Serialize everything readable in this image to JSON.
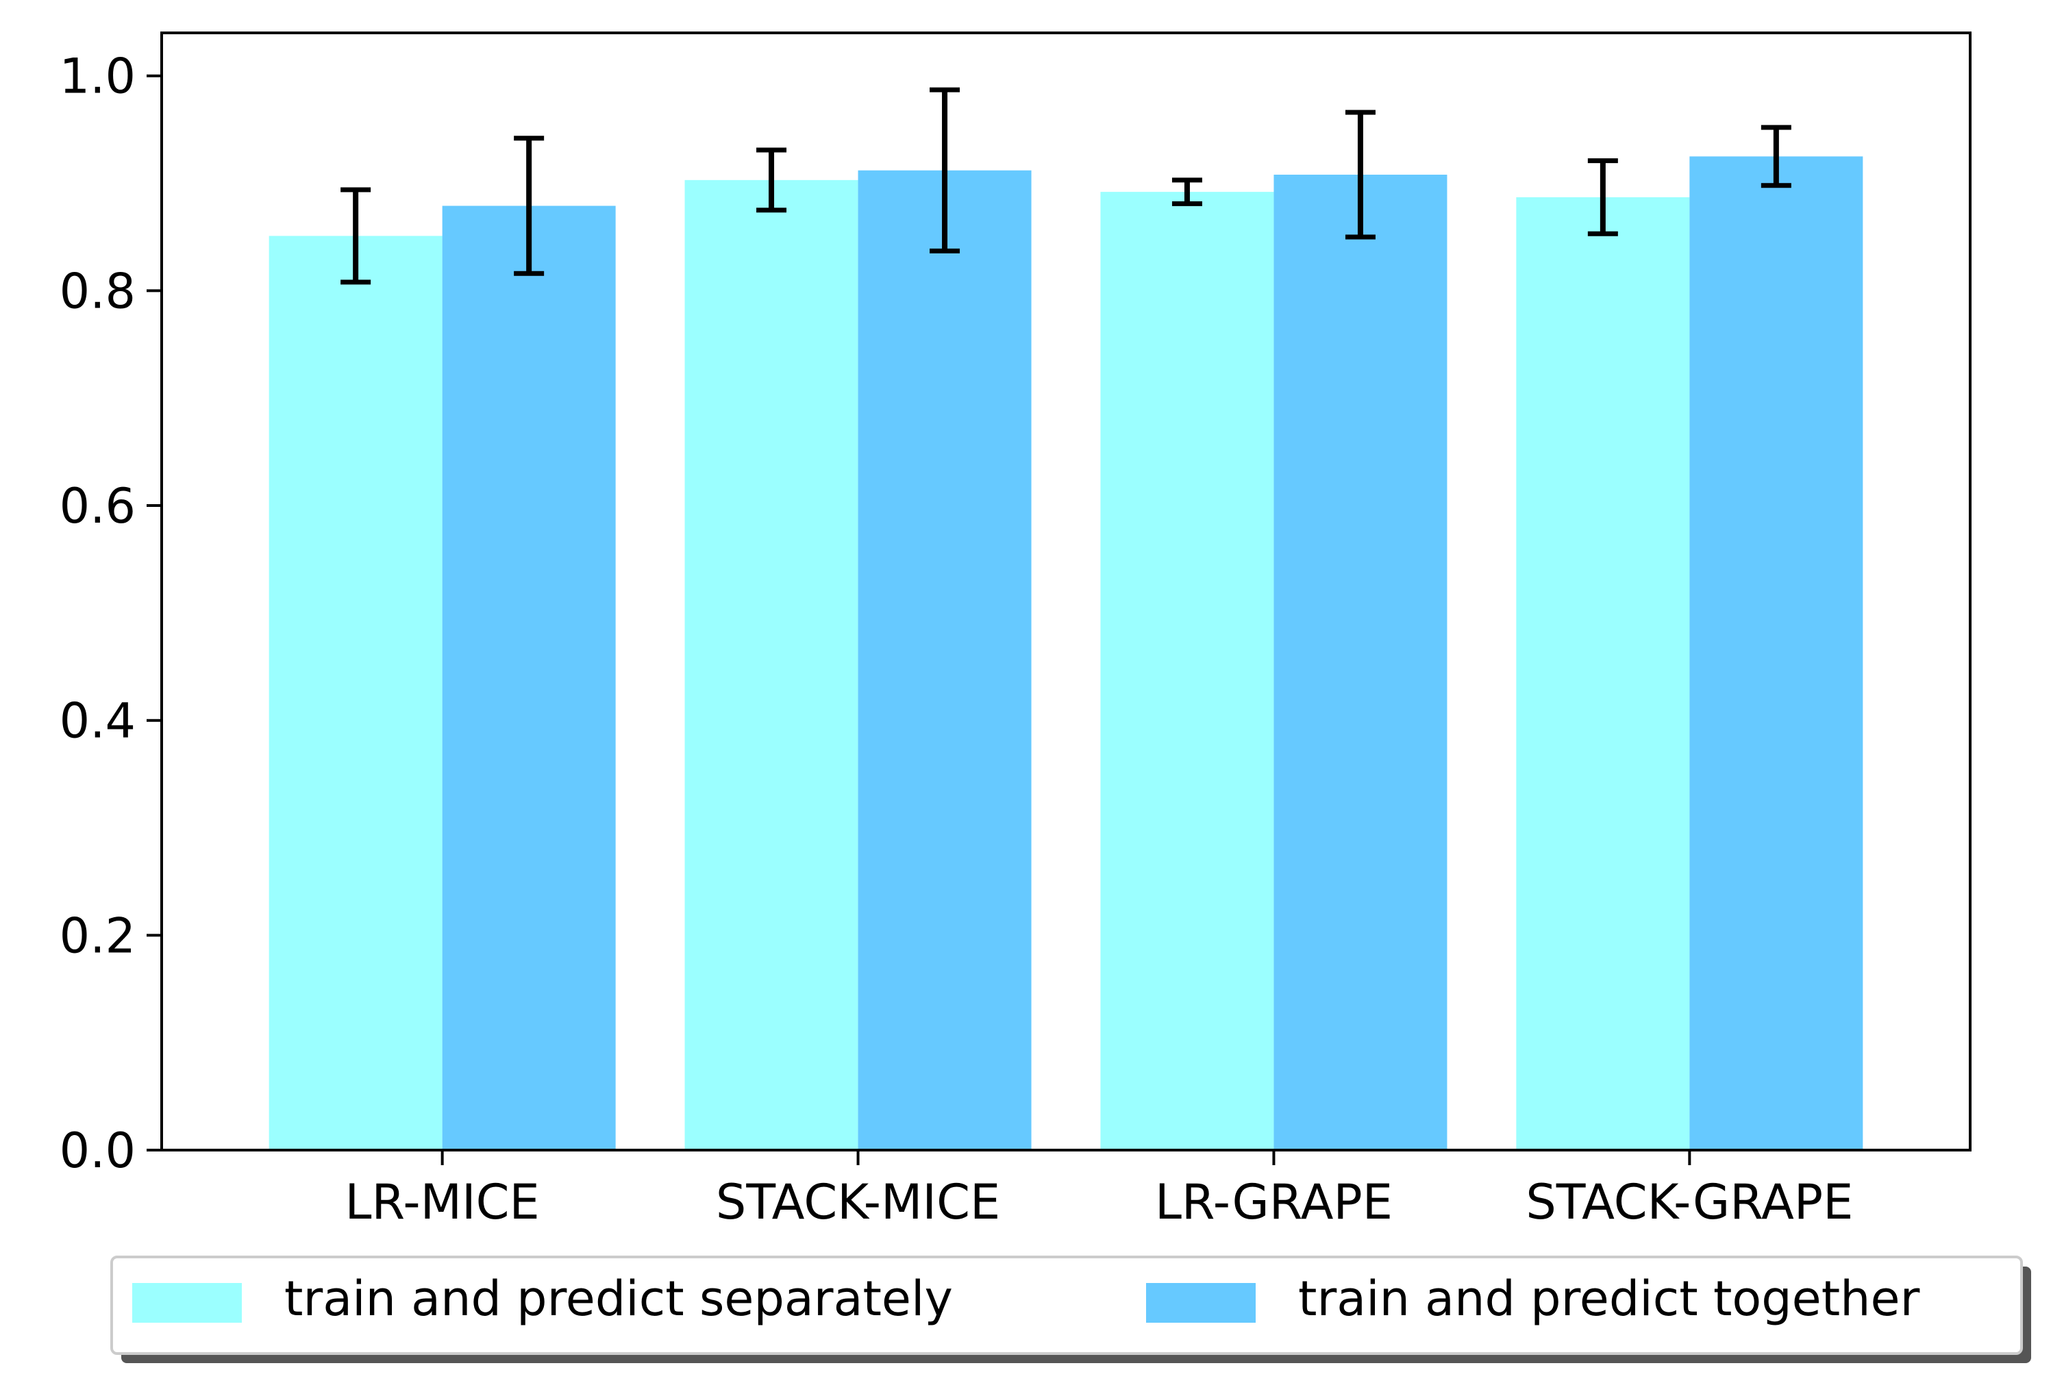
{
  "chart_data": {
    "type": "bar",
    "title": "",
    "xlabel": "",
    "ylabel": "",
    "ylim": [
      0,
      1.04
    ],
    "yticks": [
      0.0,
      0.2,
      0.4,
      0.6,
      0.8,
      1.0
    ],
    "ytick_labels": [
      "0.0",
      "0.2",
      "0.4",
      "0.6",
      "0.8",
      "1.0"
    ],
    "categories": [
      "LR-MICE",
      "STACK-MICE",
      "LR-GRAPE",
      "STACK-GRAPE"
    ],
    "series": [
      {
        "name": "train and predict separately",
        "color": "#9bffff",
        "values": [
          0.851,
          0.903,
          0.892,
          0.887
        ],
        "errors": [
          0.043,
          0.028,
          0.011,
          0.034
        ]
      },
      {
        "name": "train and predict together",
        "color": "#66c9ff",
        "values": [
          0.879,
          0.912,
          0.908,
          0.925
        ],
        "errors": [
          0.063,
          0.075,
          0.058,
          0.027
        ]
      }
    ],
    "error_bar_color": "#000000",
    "grid": false,
    "legend_position": "bottom"
  }
}
